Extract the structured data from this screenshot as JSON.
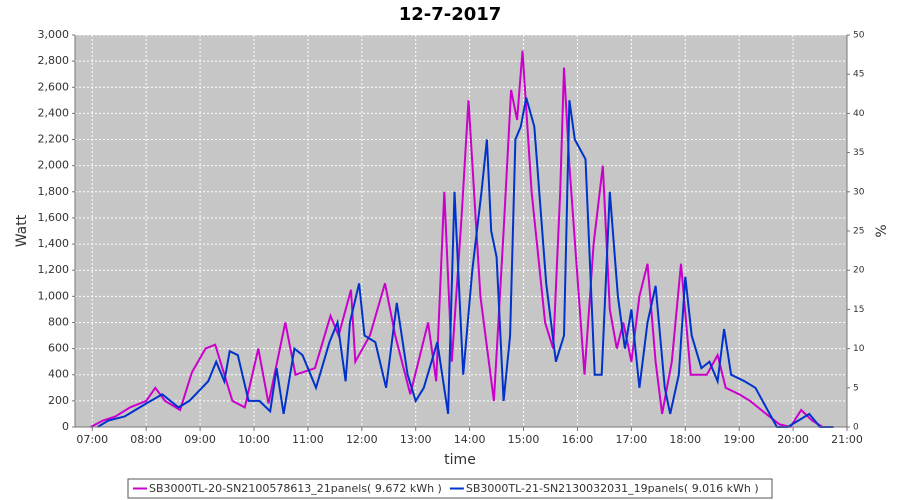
{
  "chart_data": {
    "type": "line",
    "title": "12-7-2017",
    "x_label": "time",
    "y_label": "Watt",
    "y2_label": "%",
    "xlim": [
      6.68,
      21.0
    ],
    "xticks": [
      {
        "value": 7,
        "label": "07:00"
      },
      {
        "value": 8,
        "label": "08:00"
      },
      {
        "value": 9,
        "label": "09:00"
      },
      {
        "value": 10,
        "label": "10:00"
      },
      {
        "value": 11,
        "label": "11:00"
      },
      {
        "value": 12,
        "label": "12:00"
      },
      {
        "value": 13,
        "label": "13:00"
      },
      {
        "value": 14,
        "label": "14:00"
      },
      {
        "value": 15,
        "label": "15:00"
      },
      {
        "value": 16,
        "label": "16:00"
      },
      {
        "value": 17,
        "label": "17:00"
      },
      {
        "value": 18,
        "label": "18:00"
      },
      {
        "value": 19,
        "label": "19:00"
      },
      {
        "value": 20,
        "label": "20:00"
      },
      {
        "value": 21,
        "label": "21:00"
      }
    ],
    "ylim": [
      0,
      3000
    ],
    "yticks": [
      0,
      200,
      400,
      600,
      800,
      {
        "value": 1000,
        "label": "1,000"
      },
      {
        "value": 1200,
        "label": "1,200"
      },
      {
        "value": 1400,
        "label": "1,400"
      },
      {
        "value": 1600,
        "label": "1,600"
      },
      {
        "value": 1800,
        "label": "1,800"
      },
      {
        "value": 2000,
        "label": "2,000"
      },
      {
        "value": 2200,
        "label": "2,200"
      },
      {
        "value": 2400,
        "label": "2,400"
      },
      {
        "value": 2600,
        "label": "2,600"
      },
      {
        "value": 2800,
        "label": "2,800"
      },
      {
        "value": 3000,
        "label": "3,000"
      }
    ],
    "y2lim": [
      0,
      50
    ],
    "y2ticks": [
      0,
      5,
      10,
      15,
      20,
      25,
      30,
      35,
      40,
      45,
      50
    ],
    "grid": true,
    "series": [
      {
        "name": "SB3000TL-20-SN2100578613_21panels( 9.672 kWh )",
        "color": "#cc00cc",
        "x": [
          6.97,
          7.2,
          7.43,
          7.7,
          8.0,
          8.17,
          8.35,
          8.63,
          8.85,
          9.1,
          9.28,
          9.6,
          9.83,
          10.08,
          10.27,
          10.58,
          10.77,
          11.13,
          11.42,
          11.57,
          11.8,
          11.88,
          12.15,
          12.43,
          12.62,
          12.9,
          13.23,
          13.38,
          13.53,
          13.67,
          13.85,
          13.98,
          14.2,
          14.45,
          14.63,
          14.77,
          14.88,
          14.98,
          15.15,
          15.4,
          15.55,
          15.68,
          15.75,
          15.85,
          16.13,
          16.3,
          16.47,
          16.6,
          16.73,
          16.85,
          17.0,
          17.15,
          17.3,
          17.45,
          17.57,
          17.75,
          17.92,
          18.1,
          18.4,
          18.6,
          18.75,
          19.0,
          19.2,
          19.5,
          19.75,
          19.95,
          20.15,
          20.35,
          20.55
        ],
        "values": [
          0,
          50,
          80,
          150,
          200,
          300,
          200,
          130,
          420,
          600,
          630,
          200,
          150,
          600,
          180,
          800,
          400,
          450,
          850,
          700,
          1050,
          500,
          700,
          1100,
          700,
          250,
          800,
          350,
          1800,
          500,
          1600,
          2500,
          1000,
          200,
          1500,
          2580,
          2350,
          2880,
          1800,
          800,
          600,
          1800,
          2750,
          2000,
          400,
          1400,
          2000,
          900,
          600,
          800,
          500,
          1000,
          1250,
          500,
          100,
          500,
          1250,
          400,
          400,
          550,
          300,
          250,
          200,
          100,
          20,
          0,
          130,
          50,
          0
        ]
      },
      {
        "name": "SB3000TL-21-SN2130032031_19panels( 9.016 kWh )",
        "color": "#0033cc",
        "x": [
          7.1,
          7.3,
          7.6,
          8.0,
          8.3,
          8.6,
          8.8,
          9.15,
          9.3,
          9.45,
          9.55,
          9.7,
          9.9,
          10.1,
          10.3,
          10.42,
          10.55,
          10.75,
          10.9,
          11.15,
          11.4,
          11.55,
          11.7,
          11.78,
          11.95,
          12.05,
          12.25,
          12.45,
          12.65,
          12.85,
          13.0,
          13.15,
          13.4,
          13.6,
          13.72,
          13.88,
          14.05,
          14.22,
          14.32,
          14.4,
          14.5,
          14.63,
          14.75,
          14.85,
          14.95,
          15.05,
          15.2,
          15.42,
          15.6,
          15.75,
          15.85,
          15.95,
          16.15,
          16.32,
          16.45,
          16.6,
          16.75,
          16.88,
          17.0,
          17.15,
          17.3,
          17.45,
          17.62,
          17.72,
          17.88,
          18.0,
          18.12,
          18.3,
          18.45,
          18.6,
          18.72,
          18.85,
          19.1,
          19.3,
          19.5,
          19.7,
          19.9,
          20.1,
          20.3,
          20.5,
          20.75
        ],
        "values": [
          0,
          50,
          80,
          180,
          250,
          150,
          200,
          350,
          500,
          350,
          580,
          550,
          200,
          200,
          120,
          450,
          100,
          600,
          550,
          300,
          650,
          800,
          350,
          800,
          1100,
          700,
          650,
          300,
          950,
          400,
          200,
          300,
          650,
          100,
          1800,
          400,
          1200,
          1800,
          2200,
          1500,
          1300,
          200,
          700,
          2200,
          2300,
          2520,
          2300,
          1100,
          500,
          700,
          2500,
          2200,
          2050,
          400,
          400,
          1800,
          1000,
          600,
          900,
          300,
          800,
          1080,
          300,
          100,
          400,
          1150,
          700,
          450,
          500,
          350,
          750,
          400,
          350,
          300,
          150,
          0,
          0,
          50,
          100,
          0,
          0
        ]
      }
    ]
  }
}
